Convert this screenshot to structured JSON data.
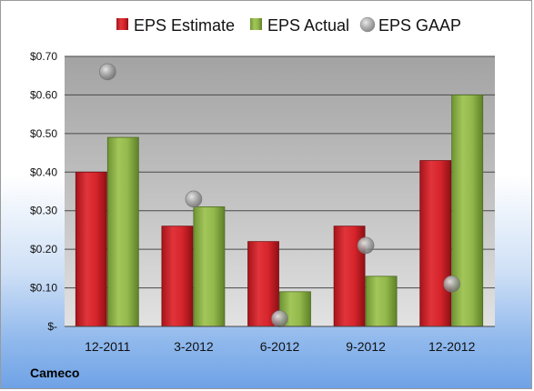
{
  "company": "Cameco",
  "colors": {
    "estimate": "#cc2027",
    "actual": "#8ab146",
    "gaap": "#a8a8a8",
    "plot_bg_top": "#a7a7a7",
    "plot_bg_bottom": "#dcdcdc"
  },
  "chart_data": {
    "type": "bar",
    "categories": [
      "12-2011",
      "3-2012",
      "6-2012",
      "9-2012",
      "12-2012"
    ],
    "series": [
      {
        "name": "EPS Estimate",
        "kind": "bar",
        "values": [
          0.4,
          0.26,
          0.22,
          0.26,
          0.43
        ]
      },
      {
        "name": "EPS Actual",
        "kind": "bar",
        "values": [
          0.49,
          0.31,
          0.09,
          0.13,
          0.6
        ]
      },
      {
        "name": "EPS GAAP",
        "kind": "marker",
        "values": [
          0.66,
          0.33,
          0.02,
          0.21,
          0.11
        ]
      }
    ],
    "ylim": [
      0,
      0.7
    ],
    "y_ticks": [
      0,
      0.1,
      0.2,
      0.3,
      0.4,
      0.5,
      0.6,
      0.7
    ],
    "y_tick_labels": [
      "$-",
      "$0.10",
      "$0.20",
      "$0.30",
      "$0.40",
      "$0.50",
      "$0.60",
      "$0.70"
    ],
    "grid": true,
    "legend_position": "top"
  }
}
